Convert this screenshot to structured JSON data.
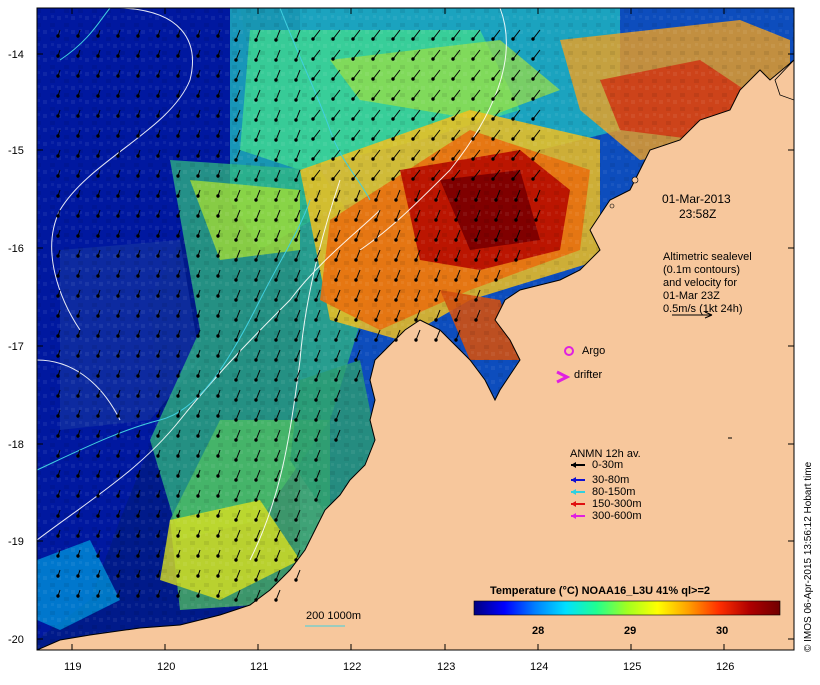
{
  "map": {
    "date_line1": "01-Mar-2013",
    "date_line2": "23:58Z",
    "altimetry_lines": [
      "Altimetric sealevel",
      "(0.1m contours)",
      "and velocity for",
      "01-Mar 23Z",
      "0.5m/s (1kt 24h)"
    ],
    "argo_label": "Argo",
    "drifter_label": "drifter",
    "anmn": {
      "title": "ANMN 12h av.",
      "items": [
        {
          "label": "0-30m",
          "color": "#000000"
        },
        {
          "label": "30-80m",
          "color": "#1010d0"
        },
        {
          "label": "80-150m",
          "color": "#30d0e0"
        },
        {
          "label": "150-300m",
          "color": "#e01010"
        },
        {
          "label": "300-600m",
          "color": "#e020e0"
        }
      ]
    },
    "isobath_label": "200  1000m",
    "colorbar": {
      "title": "Temperature (°C) NOAA16_L3U 41% ql>=2",
      "ticks": [
        "28",
        "29",
        "30"
      ],
      "stops": [
        "#00007f",
        "#0000ff",
        "#0080ff",
        "#00e0ff",
        "#20ff90",
        "#a0ff20",
        "#ffff00",
        "#ffa000",
        "#ff3000",
        "#b00000",
        "#700000"
      ]
    },
    "credit": "© IMOS 06-Apr-2015 13:56:12 Hobart time",
    "y_ticks": [
      "-14",
      "-15",
      "-16",
      "-17",
      "-18",
      "-19",
      "-20"
    ],
    "x_ticks": [
      "119",
      "120",
      "121",
      "122",
      "123",
      "124",
      "125",
      "126"
    ],
    "colors": {
      "land": "#f7c79c",
      "ocean_deep": "#0a1a8a",
      "argo": "#e020e0"
    }
  }
}
